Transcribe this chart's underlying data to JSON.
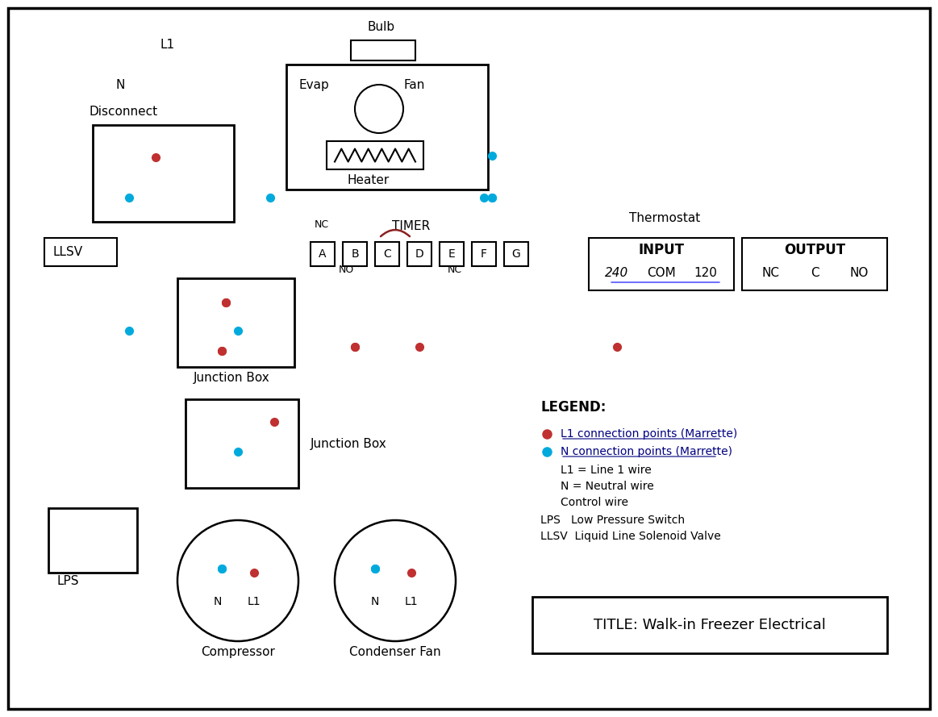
{
  "bg_color": "#ffffff",
  "border_color": "#000000",
  "L1_color": "#8B2020",
  "N_color": "#00AADD",
  "ctrl_color": "#7070C0",
  "dot_L1": "#C03030",
  "dot_N": "#00AADD",
  "title": "TITLE: Walk-in Freezer Electrical",
  "legend_items": [
    "L1 connection points (Marrette)",
    "N connection points (Marrette)",
    "L1 = Line 1 wire",
    "N = Neutral wire",
    "Control wire",
    "LPS   Low Pressure Switch",
    "LLSV  Liquid Line Solenoid Valve"
  ]
}
